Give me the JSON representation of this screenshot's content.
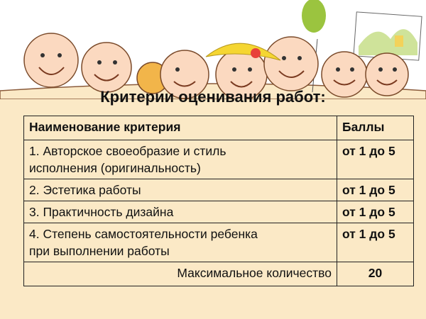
{
  "title": "Критерии оценивания работ:",
  "table": {
    "headers": [
      "Наименование критерия",
      "Баллы"
    ],
    "rows": [
      {
        "criterion_line1": "1. Авторское своеобразие и стиль",
        "criterion_line2": "исполнения (оригинальность)",
        "score": "от 1 до 5"
      },
      {
        "criterion_line1": "2. Эстетика работы",
        "score": "от 1 до 5"
      },
      {
        "criterion_line1": "3. Практичность дизайна",
        "score": "от 1 до 5"
      },
      {
        "criterion_line1": "4. Степень самостоятельности ребенка",
        "criterion_line2": "при выполнении работы",
        "score": "от 1 до 5"
      }
    ],
    "total_label": "Максимальное количество",
    "total_value": "20"
  },
  "colors": {
    "background": "#fbe9c6",
    "border": "#222222",
    "balloon": "#9bc43f",
    "hat": "#f5d632"
  }
}
